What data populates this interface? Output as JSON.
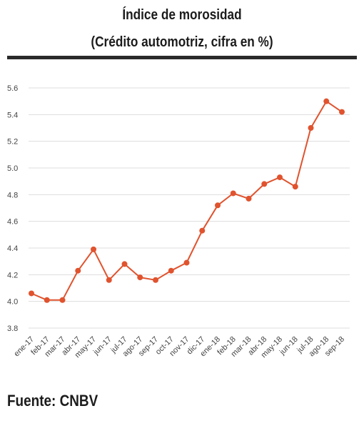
{
  "header": {
    "title": "Índice de morosidad",
    "subtitle": "(Crédito automotriz, cifra en %)"
  },
  "footer": {
    "source": "Fuente: CNBV"
  },
  "colors": {
    "series": "#e0532e",
    "grid": "#dddddd",
    "axis_text": "#444444",
    "rule": "#2a2a2a"
  },
  "chart_data": {
    "type": "line",
    "title": "Índice de morosidad",
    "subtitle": "(Crédito automotriz, cifra en %)",
    "xlabel": "",
    "ylabel": "",
    "categories": [
      "ene-17",
      "feb-17",
      "mar-17",
      "abr-17",
      "may-17",
      "jun-17",
      "jul-17",
      "ago-17",
      "sep-17",
      "oct-17",
      "nov-17",
      "dic-17",
      "ene-18",
      "feb-18",
      "mar-18",
      "abr-18",
      "may-18",
      "jun-18",
      "jul-18",
      "ago-18",
      "sep-18"
    ],
    "series": [
      {
        "name": "",
        "values": [
          4.06,
          4.01,
          4.01,
          4.23,
          4.39,
          4.16,
          4.28,
          4.18,
          4.16,
          4.23,
          4.29,
          4.53,
          4.72,
          4.81,
          4.77,
          4.88,
          4.93,
          4.86,
          5.3,
          5.5,
          5.42
        ]
      }
    ],
    "yticks": [
      3.8,
      4.0,
      4.2,
      4.4,
      4.6,
      4.8,
      5.0,
      5.2,
      5.4,
      5.6
    ],
    "ytick_labels": [
      "3.8",
      "4.0",
      "4.2",
      "4.4",
      "4.6",
      "4.8",
      "5.0",
      "5.2",
      "5.4",
      "5.6"
    ],
    "ylim": [
      3.8,
      5.6
    ],
    "grid": "horizontal",
    "legend": "none"
  }
}
